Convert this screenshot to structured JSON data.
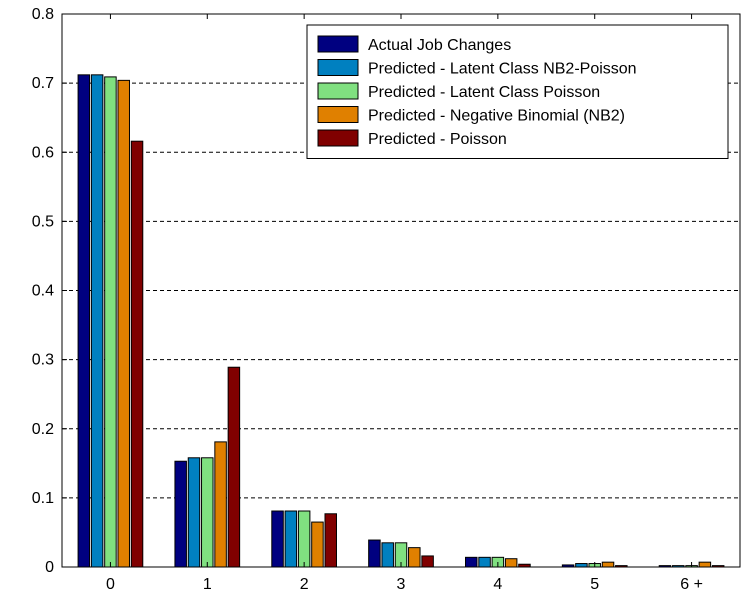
{
  "chart_data": {
    "type": "bar",
    "title": "",
    "xlabel": "",
    "ylabel": "",
    "categories": [
      "0",
      "1",
      "2",
      "3",
      "4",
      "5",
      "6 +"
    ],
    "ylim": [
      0,
      0.8
    ],
    "yticks": [
      "0",
      "0.1",
      "0.2",
      "0.3",
      "0.4",
      "0.5",
      "0.6",
      "0.7",
      "0.8"
    ],
    "grid": "horizontal-dashed",
    "legend_position": "top-right",
    "series": [
      {
        "name": "Actual Job Changes",
        "color": "#000080",
        "values": [
          0.712,
          0.153,
          0.081,
          0.039,
          0.014,
          0.003,
          0.002
        ]
      },
      {
        "name": "Predicted - Latent Class NB2-Poisson",
        "color": "#0080c0",
        "values": [
          0.712,
          0.158,
          0.081,
          0.035,
          0.014,
          0.005,
          0.002
        ]
      },
      {
        "name": "Predicted - Latent Class Poisson",
        "color": "#80e080",
        "values": [
          0.709,
          0.158,
          0.081,
          0.035,
          0.014,
          0.005,
          0.002
        ]
      },
      {
        "name": "Predicted - Negative Binomial (NB2)",
        "color": "#e08000",
        "values": [
          0.704,
          0.181,
          0.065,
          0.028,
          0.012,
          0.007,
          0.007
        ]
      },
      {
        "name": "Predicted - Poisson",
        "color": "#800000",
        "values": [
          0.616,
          0.289,
          0.077,
          0.016,
          0.004,
          0.002,
          0.002
        ]
      }
    ]
  }
}
